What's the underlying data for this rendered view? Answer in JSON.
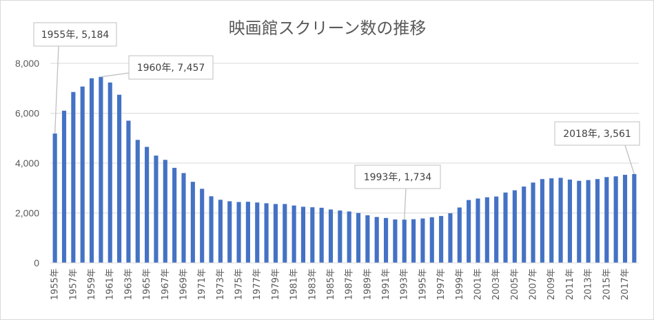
{
  "chart_data": {
    "type": "bar",
    "title": "映画館スクリーン数の推移",
    "xlabel": "",
    "ylabel": "",
    "ylim": [
      0,
      8000
    ],
    "grid": true,
    "bar_color": "#4472c4",
    "y_ticks": [
      "0",
      "2,000",
      "4,000",
      "6,000",
      "8,000"
    ],
    "y_tick_values": [
      0,
      2000,
      4000,
      6000,
      8000
    ],
    "categories": [
      "1955年",
      "1956年",
      "1957年",
      "1958年",
      "1959年",
      "1960年",
      "1961年",
      "1962年",
      "1963年",
      "1964年",
      "1965年",
      "1966年",
      "1967年",
      "1968年",
      "1969年",
      "1970年",
      "1971年",
      "1972年",
      "1973年",
      "1974年",
      "1975年",
      "1976年",
      "1977年",
      "1978年",
      "1979年",
      "1980年",
      "1981年",
      "1982年",
      "1983年",
      "1984年",
      "1985年",
      "1986年",
      "1987年",
      "1988年",
      "1989年",
      "1990年",
      "1991年",
      "1992年",
      "1993年",
      "1994年",
      "1995年",
      "1996年",
      "1997年",
      "1998年",
      "1999年",
      "2000年",
      "2001年",
      "2002年",
      "2003年",
      "2004年",
      "2005年",
      "2006年",
      "2007年",
      "2008年",
      "2009年",
      "2010年",
      "2011年",
      "2012年",
      "2013年",
      "2014年",
      "2015年",
      "2016年",
      "2017年",
      "2018年"
    ],
    "x_tick_labels": [
      "1955年",
      "1957年",
      "1959年",
      "1961年",
      "1963年",
      "1965年",
      "1967年",
      "1969年",
      "1971年",
      "1973年",
      "1975年",
      "1977年",
      "1979年",
      "1981年",
      "1983年",
      "1985年",
      "1987年",
      "1989年",
      "1991年",
      "1993年",
      "1995年",
      "1997年",
      "1999年",
      "2001年",
      "2003年",
      "2005年",
      "2007年",
      "2009年",
      "2011年",
      "2013年",
      "2015年",
      "2017年"
    ],
    "values": [
      5184,
      6100,
      6850,
      7070,
      7400,
      7457,
      7230,
      6740,
      5700,
      4930,
      4650,
      4300,
      4130,
      3810,
      3600,
      3250,
      2970,
      2670,
      2530,
      2470,
      2440,
      2450,
      2420,
      2390,
      2360,
      2360,
      2300,
      2250,
      2230,
      2210,
      2140,
      2100,
      2060,
      2000,
      1910,
      1840,
      1800,
      1740,
      1734,
      1750,
      1780,
      1830,
      1880,
      1990,
      2220,
      2520,
      2580,
      2630,
      2660,
      2820,
      2910,
      3060,
      3220,
      3360,
      3390,
      3410,
      3340,
      3290,
      3320,
      3360,
      3440,
      3470,
      3530,
      3561
    ],
    "annotations": [
      {
        "index": 0,
        "text": "1955年, 5,184"
      },
      {
        "index": 5,
        "text": "1960年, 7,457"
      },
      {
        "index": 38,
        "text": "1993年, 1,734"
      },
      {
        "index": 63,
        "text": "2018年, 3,561"
      }
    ]
  }
}
